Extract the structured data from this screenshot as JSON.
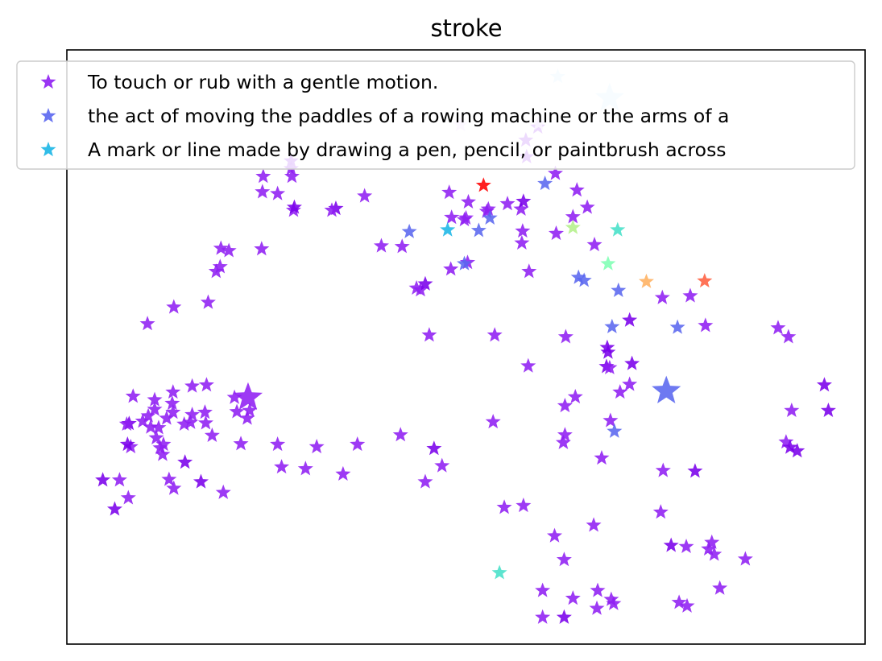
{
  "chart_data": {
    "type": "scatter",
    "title": "stroke",
    "xlabel": "",
    "ylabel": "",
    "xlim": [
      0,
      1000
    ],
    "ylim": [
      0,
      1000
    ],
    "ticks_visible": false,
    "grid": false,
    "marker": "star",
    "legend_position": "top",
    "legend": [
      {
        "label": "To touch or rub with a gentle motion.",
        "color": "#8f1ff2"
      },
      {
        "label": "the act of moving the paddles of a rowing machine or the arms of a",
        "color": "#5a66ef"
      },
      {
        "label": "A mark or line made by drawing a pen, pencil, or paintbrush across",
        "color": "#1bb6e6"
      }
    ],
    "points": [
      {
        "x": 246,
        "y": 787,
        "color": "#8f1ff2"
      },
      {
        "x": 282,
        "y": 787,
        "color": "#8f1ff2"
      },
      {
        "x": 281,
        "y": 800,
        "color": "#8f1ff2"
      },
      {
        "x": 264,
        "y": 758,
        "color": "#8f1ff2"
      },
      {
        "x": 284,
        "y": 730,
        "color": "#8f1ff2"
      },
      {
        "x": 337,
        "y": 733,
        "color": "#7a00ea"
      },
      {
        "x": 373,
        "y": 754,
        "color": "#8f1ff2"
      },
      {
        "x": 193,
        "y": 666,
        "color": "#8f1ff2"
      },
      {
        "x": 192,
        "y": 635,
        "color": "#8f1ff2"
      },
      {
        "x": 187,
        "y": 627,
        "color": "#8f1ff2"
      },
      {
        "x": 203,
        "y": 662,
        "color": "#8f1ff2"
      },
      {
        "x": 244,
        "y": 665,
        "color": "#8f1ff2"
      },
      {
        "x": 134,
        "y": 567,
        "color": "#8f1ff2"
      },
      {
        "x": 101,
        "y": 539,
        "color": "#8f1ff2"
      },
      {
        "x": 177,
        "y": 575,
        "color": "#8f1ff2"
      },
      {
        "x": 157,
        "y": 434,
        "color": "#8f1ff2"
      },
      {
        "x": 175,
        "y": 436,
        "color": "#8f1ff2"
      },
      {
        "x": 133,
        "y": 424,
        "color": "#8f1ff2"
      },
      {
        "x": 110,
        "y": 411,
        "color": "#8f1ff2"
      },
      {
        "x": 83,
        "y": 417,
        "color": "#8f1ff2"
      },
      {
        "x": 102,
        "y": 384,
        "color": "#8f1ff2"
      },
      {
        "x": 78,
        "y": 371,
        "color": "#7a00ea"
      },
      {
        "x": 45,
        "y": 276,
        "color": "#7a00ea"
      },
      {
        "x": 66,
        "y": 276,
        "color": "#8f1ff2"
      },
      {
        "x": 77,
        "y": 246,
        "color": "#8f1ff2"
      },
      {
        "x": 60,
        "y": 227,
        "color": "#7a00ea"
      },
      {
        "x": 75,
        "y": 370,
        "color": "#8f1ff2"
      },
      {
        "x": 105,
        "y": 365,
        "color": "#8f1ff2"
      },
      {
        "x": 95,
        "y": 375,
        "color": "#8f1ff2"
      },
      {
        "x": 110,
        "y": 395,
        "color": "#8f1ff2"
      },
      {
        "x": 125,
        "y": 380,
        "color": "#8f1ff2"
      },
      {
        "x": 115,
        "y": 364,
        "color": "#8f1ff2"
      },
      {
        "x": 112,
        "y": 347,
        "color": "#8f1ff2"
      },
      {
        "x": 117,
        "y": 330,
        "color": "#8f1ff2"
      },
      {
        "x": 133,
        "y": 390,
        "color": "#8f1ff2"
      },
      {
        "x": 132,
        "y": 405,
        "color": "#8f1ff2"
      },
      {
        "x": 157,
        "y": 386,
        "color": "#8f1ff2"
      },
      {
        "x": 147,
        "y": 370,
        "color": "#8f1ff2"
      },
      {
        "x": 155,
        "y": 373,
        "color": "#8f1ff2"
      },
      {
        "x": 173,
        "y": 390,
        "color": "#8f1ff2"
      },
      {
        "x": 174,
        "y": 372,
        "color": "#8f1ff2"
      },
      {
        "x": 210,
        "y": 415,
        "color": "#8f1ff2"
      },
      {
        "x": 226,
        "y": 380,
        "color": "#8f1ff2"
      },
      {
        "x": 213,
        "y": 391,
        "color": "#8f1ff2"
      },
      {
        "x": 182,
        "y": 351,
        "color": "#8f1ff2"
      },
      {
        "x": 121,
        "y": 336,
        "color": "#8f1ff2"
      },
      {
        "x": 120,
        "y": 319,
        "color": "#8f1ff2"
      },
      {
        "x": 80,
        "y": 332,
        "color": "#8f1ff2"
      },
      {
        "x": 76,
        "y": 336,
        "color": "#7a00ea"
      },
      {
        "x": 148,
        "y": 306,
        "color": "#7a00ea"
      },
      {
        "x": 128,
        "y": 277,
        "color": "#8f1ff2"
      },
      {
        "x": 134,
        "y": 262,
        "color": "#8f1ff2"
      },
      {
        "x": 168,
        "y": 273,
        "color": "#7a00ea"
      },
      {
        "x": 196,
        "y": 255,
        "color": "#8f1ff2"
      },
      {
        "x": 218,
        "y": 337,
        "color": "#8f1ff2"
      },
      {
        "x": 264,
        "y": 336,
        "color": "#8f1ff2"
      },
      {
        "x": 269,
        "y": 298,
        "color": "#8f1ff2"
      },
      {
        "x": 313,
        "y": 332,
        "color": "#8f1ff2"
      },
      {
        "x": 299,
        "y": 295,
        "color": "#8f1ff2"
      },
      {
        "x": 346,
        "y": 286,
        "color": "#8f1ff2"
      },
      {
        "x": 364,
        "y": 336,
        "color": "#8f1ff2"
      },
      {
        "x": 418,
        "y": 352,
        "color": "#8f1ff2"
      },
      {
        "x": 460,
        "y": 329,
        "color": "#7a00ea"
      },
      {
        "x": 470,
        "y": 300,
        "color": "#8f1ff2"
      },
      {
        "x": 449,
        "y": 273,
        "color": "#8f1ff2"
      },
      {
        "x": 229,
        "y": 393,
        "color": "#8f1ff2"
      },
      {
        "x": 534,
        "y": 374,
        "color": "#8f1ff2"
      },
      {
        "x": 548,
        "y": 230,
        "color": "#8f1ff2"
      },
      {
        "x": 572,
        "y": 233,
        "color": "#8f1ff2"
      },
      {
        "x": 611,
        "y": 182,
        "color": "#8f1ff2"
      },
      {
        "x": 623,
        "y": 142,
        "color": "#8f1ff2"
      },
      {
        "x": 596,
        "y": 90,
        "color": "#8f1ff2"
      },
      {
        "x": 623,
        "y": 45,
        "color": "#7a00ea"
      },
      {
        "x": 665,
        "y": 90,
        "color": "#8f1ff2"
      },
      {
        "x": 682,
        "y": 75,
        "color": "#8f1ff2"
      },
      {
        "x": 685,
        "y": 68,
        "color": "#8f1ff2"
      },
      {
        "x": 660,
        "y": 200,
        "color": "#8f1ff2"
      },
      {
        "x": 624,
        "y": 352,
        "color": "#8f1ff2"
      },
      {
        "x": 624,
        "y": 401,
        "color": "#8f1ff2"
      },
      {
        "x": 670,
        "y": 313,
        "color": "#8f1ff2"
      },
      {
        "x": 681,
        "y": 376,
        "color": "#8f1ff2"
      },
      {
        "x": 693,
        "y": 424,
        "color": "#8f1ff2"
      },
      {
        "x": 705,
        "y": 437,
        "color": "#8f1ff2"
      },
      {
        "x": 676,
        "y": 467,
        "color": "#7a00ea"
      },
      {
        "x": 678,
        "y": 491,
        "color": "#7a00ea"
      },
      {
        "x": 708,
        "y": 472,
        "color": "#7a00ea"
      },
      {
        "x": 747,
        "y": 292,
        "color": "#8f1ff2"
      },
      {
        "x": 787,
        "y": 291,
        "color": "#7a00ea"
      },
      {
        "x": 744,
        "y": 222,
        "color": "#8f1ff2"
      },
      {
        "x": 757,
        "y": 166,
        "color": "#7a00ea"
      },
      {
        "x": 776,
        "y": 164,
        "color": "#8f1ff2"
      },
      {
        "x": 804,
        "y": 160,
        "color": "#8f1ff2"
      },
      {
        "x": 808,
        "y": 171,
        "color": "#8f1ff2"
      },
      {
        "x": 811,
        "y": 151,
        "color": "#8f1ff2"
      },
      {
        "x": 850,
        "y": 143,
        "color": "#8f1ff2"
      },
      {
        "x": 818,
        "y": 94,
        "color": "#8f1ff2"
      },
      {
        "x": 777,
        "y": 64,
        "color": "#8f1ff2"
      },
      {
        "x": 767,
        "y": 70,
        "color": "#8f1ff2"
      },
      {
        "x": 664,
        "y": 60,
        "color": "#8f1ff2"
      },
      {
        "x": 634,
        "y": 77,
        "color": "#8f1ff2"
      },
      {
        "x": 596,
        "y": 45,
        "color": "#8f1ff2"
      },
      {
        "x": 891,
        "y": 532,
        "color": "#8f1ff2"
      },
      {
        "x": 904,
        "y": 517,
        "color": "#8f1ff2"
      },
      {
        "x": 908,
        "y": 393,
        "color": "#8f1ff2"
      },
      {
        "x": 915,
        "y": 325,
        "color": "#7a00ea"
      },
      {
        "x": 949,
        "y": 436,
        "color": "#7a00ea"
      },
      {
        "x": 954,
        "y": 393,
        "color": "#7a00ea"
      },
      {
        "x": 901,
        "y": 340,
        "color": "#8f1ff2"
      },
      {
        "x": 906,
        "y": 331,
        "color": "#7a00ea"
      },
      {
        "x": 800,
        "y": 536,
        "color": "#8f1ff2"
      },
      {
        "x": 781,
        "y": 586,
        "color": "#8f1ff2"
      },
      {
        "x": 746,
        "y": 583,
        "color": "#8f1ff2"
      },
      {
        "x": 705,
        "y": 545,
        "color": "#7a00ea"
      },
      {
        "x": 680,
        "y": 465,
        "color": "#8f1ff2"
      },
      {
        "x": 677,
        "y": 499,
        "color": "#7a00ea"
      },
      {
        "x": 637,
        "y": 416,
        "color": "#8f1ff2"
      },
      {
        "x": 625,
        "y": 517,
        "color": "#8f1ff2"
      },
      {
        "x": 622,
        "y": 339,
        "color": "#8f1ff2"
      },
      {
        "x": 578,
        "y": 468,
        "color": "#8f1ff2"
      },
      {
        "x": 536,
        "y": 520,
        "color": "#8f1ff2"
      },
      {
        "x": 454,
        "y": 520,
        "color": "#8f1ff2"
      },
      {
        "x": 443,
        "y": 596,
        "color": "#8f1ff2"
      },
      {
        "x": 502,
        "y": 642,
        "color": "#8f1ff2"
      },
      {
        "x": 500,
        "y": 717,
        "color": "#8f1ff2"
      },
      {
        "x": 481,
        "y": 631,
        "color": "#8f1ff2"
      },
      {
        "x": 438,
        "y": 599,
        "color": "#8f1ff2"
      },
      {
        "x": 420,
        "y": 669,
        "color": "#8f1ff2"
      },
      {
        "x": 449,
        "y": 606,
        "color": "#7a00ea"
      },
      {
        "x": 498,
        "y": 714,
        "color": "#8f1ff2"
      },
      {
        "x": 482,
        "y": 718,
        "color": "#8f1ff2"
      },
      {
        "x": 526,
        "y": 728,
        "color": "#8f1ff2"
      },
      {
        "x": 552,
        "y": 741,
        "color": "#8f1ff2"
      },
      {
        "x": 569,
        "y": 732,
        "color": "#8f1ff2"
      },
      {
        "x": 572,
        "y": 745,
        "color": "#7a00ea"
      },
      {
        "x": 613,
        "y": 691,
        "color": "#8f1ff2"
      },
      {
        "x": 634,
        "y": 719,
        "color": "#8f1ff2"
      },
      {
        "x": 571,
        "y": 695,
        "color": "#8f1ff2"
      },
      {
        "x": 576,
        "y": 820,
        "color": "#8f1ff2"
      },
      {
        "x": 639,
        "y": 764,
        "color": "#8f1ff2"
      },
      {
        "x": 612,
        "y": 792,
        "color": "#8f1ff2"
      },
      {
        "x": 575,
        "y": 848,
        "color": "#8f1ff2"
      },
      {
        "x": 590,
        "y": 870,
        "color": "#8f1ff2"
      },
      {
        "x": 528,
        "y": 732,
        "color": "#8f1ff2"
      },
      {
        "x": 332,
        "y": 730,
        "color": "#8f1ff2"
      },
      {
        "x": 285,
        "y": 735,
        "color": "#7a00ea"
      },
      {
        "x": 245,
        "y": 761,
        "color": "#8f1ff2"
      },
      {
        "x": 503,
        "y": 744,
        "color": "#8f1ff2"
      },
      {
        "x": 479,
        "y": 760,
        "color": "#8f1ff2"
      },
      {
        "x": 570,
        "y": 675,
        "color": "#8f1ff2"
      },
      {
        "x": 281,
        "y": 813,
        "color": "#8f1ff2"
      },
      {
        "x": 394,
        "y": 670,
        "color": "#8f1ff2"
      },
      {
        "x": 429,
        "y": 694,
        "color": "#5a66ef"
      },
      {
        "x": 530,
        "y": 717,
        "color": "#5a66ef"
      },
      {
        "x": 516,
        "y": 696,
        "color": "#5a66ef"
      },
      {
        "x": 599,
        "y": 775,
        "color": "#5a66ef"
      },
      {
        "x": 648,
        "y": 612,
        "color": "#5a66ef"
      },
      {
        "x": 691,
        "y": 595,
        "color": "#5a66ef"
      },
      {
        "x": 641,
        "y": 617,
        "color": "#5a66ef"
      },
      {
        "x": 683,
        "y": 534,
        "color": "#5a66ef"
      },
      {
        "x": 765,
        "y": 533,
        "color": "#5a66ef"
      },
      {
        "x": 751,
        "y": 426,
        "color": "#5a66ef",
        "size": "large"
      },
      {
        "x": 686,
        "y": 358,
        "color": "#5a66ef"
      },
      {
        "x": 498,
        "y": 640,
        "color": "#5a66ef"
      },
      {
        "x": 477,
        "y": 697,
        "color": "#1bb6e6"
      },
      {
        "x": 634,
        "y": 701,
        "color": "#b4f08a"
      },
      {
        "x": 678,
        "y": 640,
        "color": "#80ffb4"
      },
      {
        "x": 690,
        "y": 697,
        "color": "#46e0c8"
      },
      {
        "x": 542,
        "y": 120,
        "color": "#46e0c8"
      },
      {
        "x": 726,
        "y": 610,
        "color": "#ffb060"
      },
      {
        "x": 799,
        "y": 611,
        "color": "#ff6040"
      },
      {
        "x": 522,
        "y": 772,
        "color": "#ff0000"
      },
      {
        "x": 493,
        "y": 874,
        "color": "#e8d0ff"
      },
      {
        "x": 591,
        "y": 876,
        "color": "#e8d0ff"
      },
      {
        "x": 615,
        "y": 955,
        "color": "#cce8ff"
      },
      {
        "x": 680,
        "y": 919,
        "color": "#cce8ff",
        "size": "large"
      },
      {
        "x": 227,
        "y": 415,
        "color": "#8f1ff2",
        "size": "large"
      },
      {
        "x": 661,
        "y": 672,
        "color": "#8f1ff2"
      },
      {
        "x": 652,
        "y": 735,
        "color": "#8f1ff2"
      },
      {
        "x": 579,
        "y": 627,
        "color": "#8f1ff2"
      }
    ]
  }
}
